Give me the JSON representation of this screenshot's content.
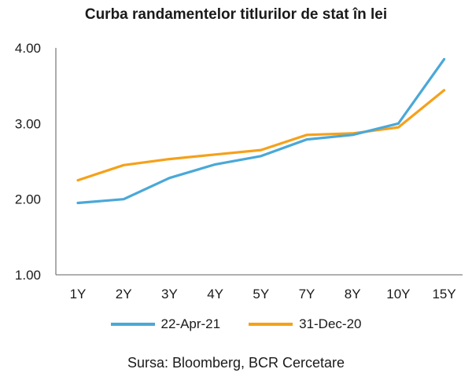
{
  "chart_data": {
    "type": "line",
    "title": "Curba randamentelor titlurilor de stat în lei",
    "categories": [
      "1Y",
      "2Y",
      "3Y",
      "4Y",
      "5Y",
      "7Y",
      "8Y",
      "10Y",
      "15Y"
    ],
    "ylim": [
      1.0,
      4.0
    ],
    "yticks": [
      "1.00",
      "2.00",
      "3.00",
      "4.00"
    ],
    "ytick_values": [
      1,
      2,
      3,
      4
    ],
    "grid": false,
    "legend_position": "bottom",
    "series": [
      {
        "name": "22-Apr-21",
        "color": "#4aa8d8",
        "values": [
          1.95,
          2.0,
          2.28,
          2.46,
          2.57,
          2.79,
          2.85,
          3.0,
          3.85
        ]
      },
      {
        "name": "31-Dec-20",
        "color": "#f5a11a",
        "values": [
          2.25,
          2.45,
          2.53,
          2.59,
          2.65,
          2.85,
          2.87,
          2.95,
          3.44
        ]
      }
    ],
    "source": "Sursa: Bloomberg, BCR Cercetare"
  }
}
